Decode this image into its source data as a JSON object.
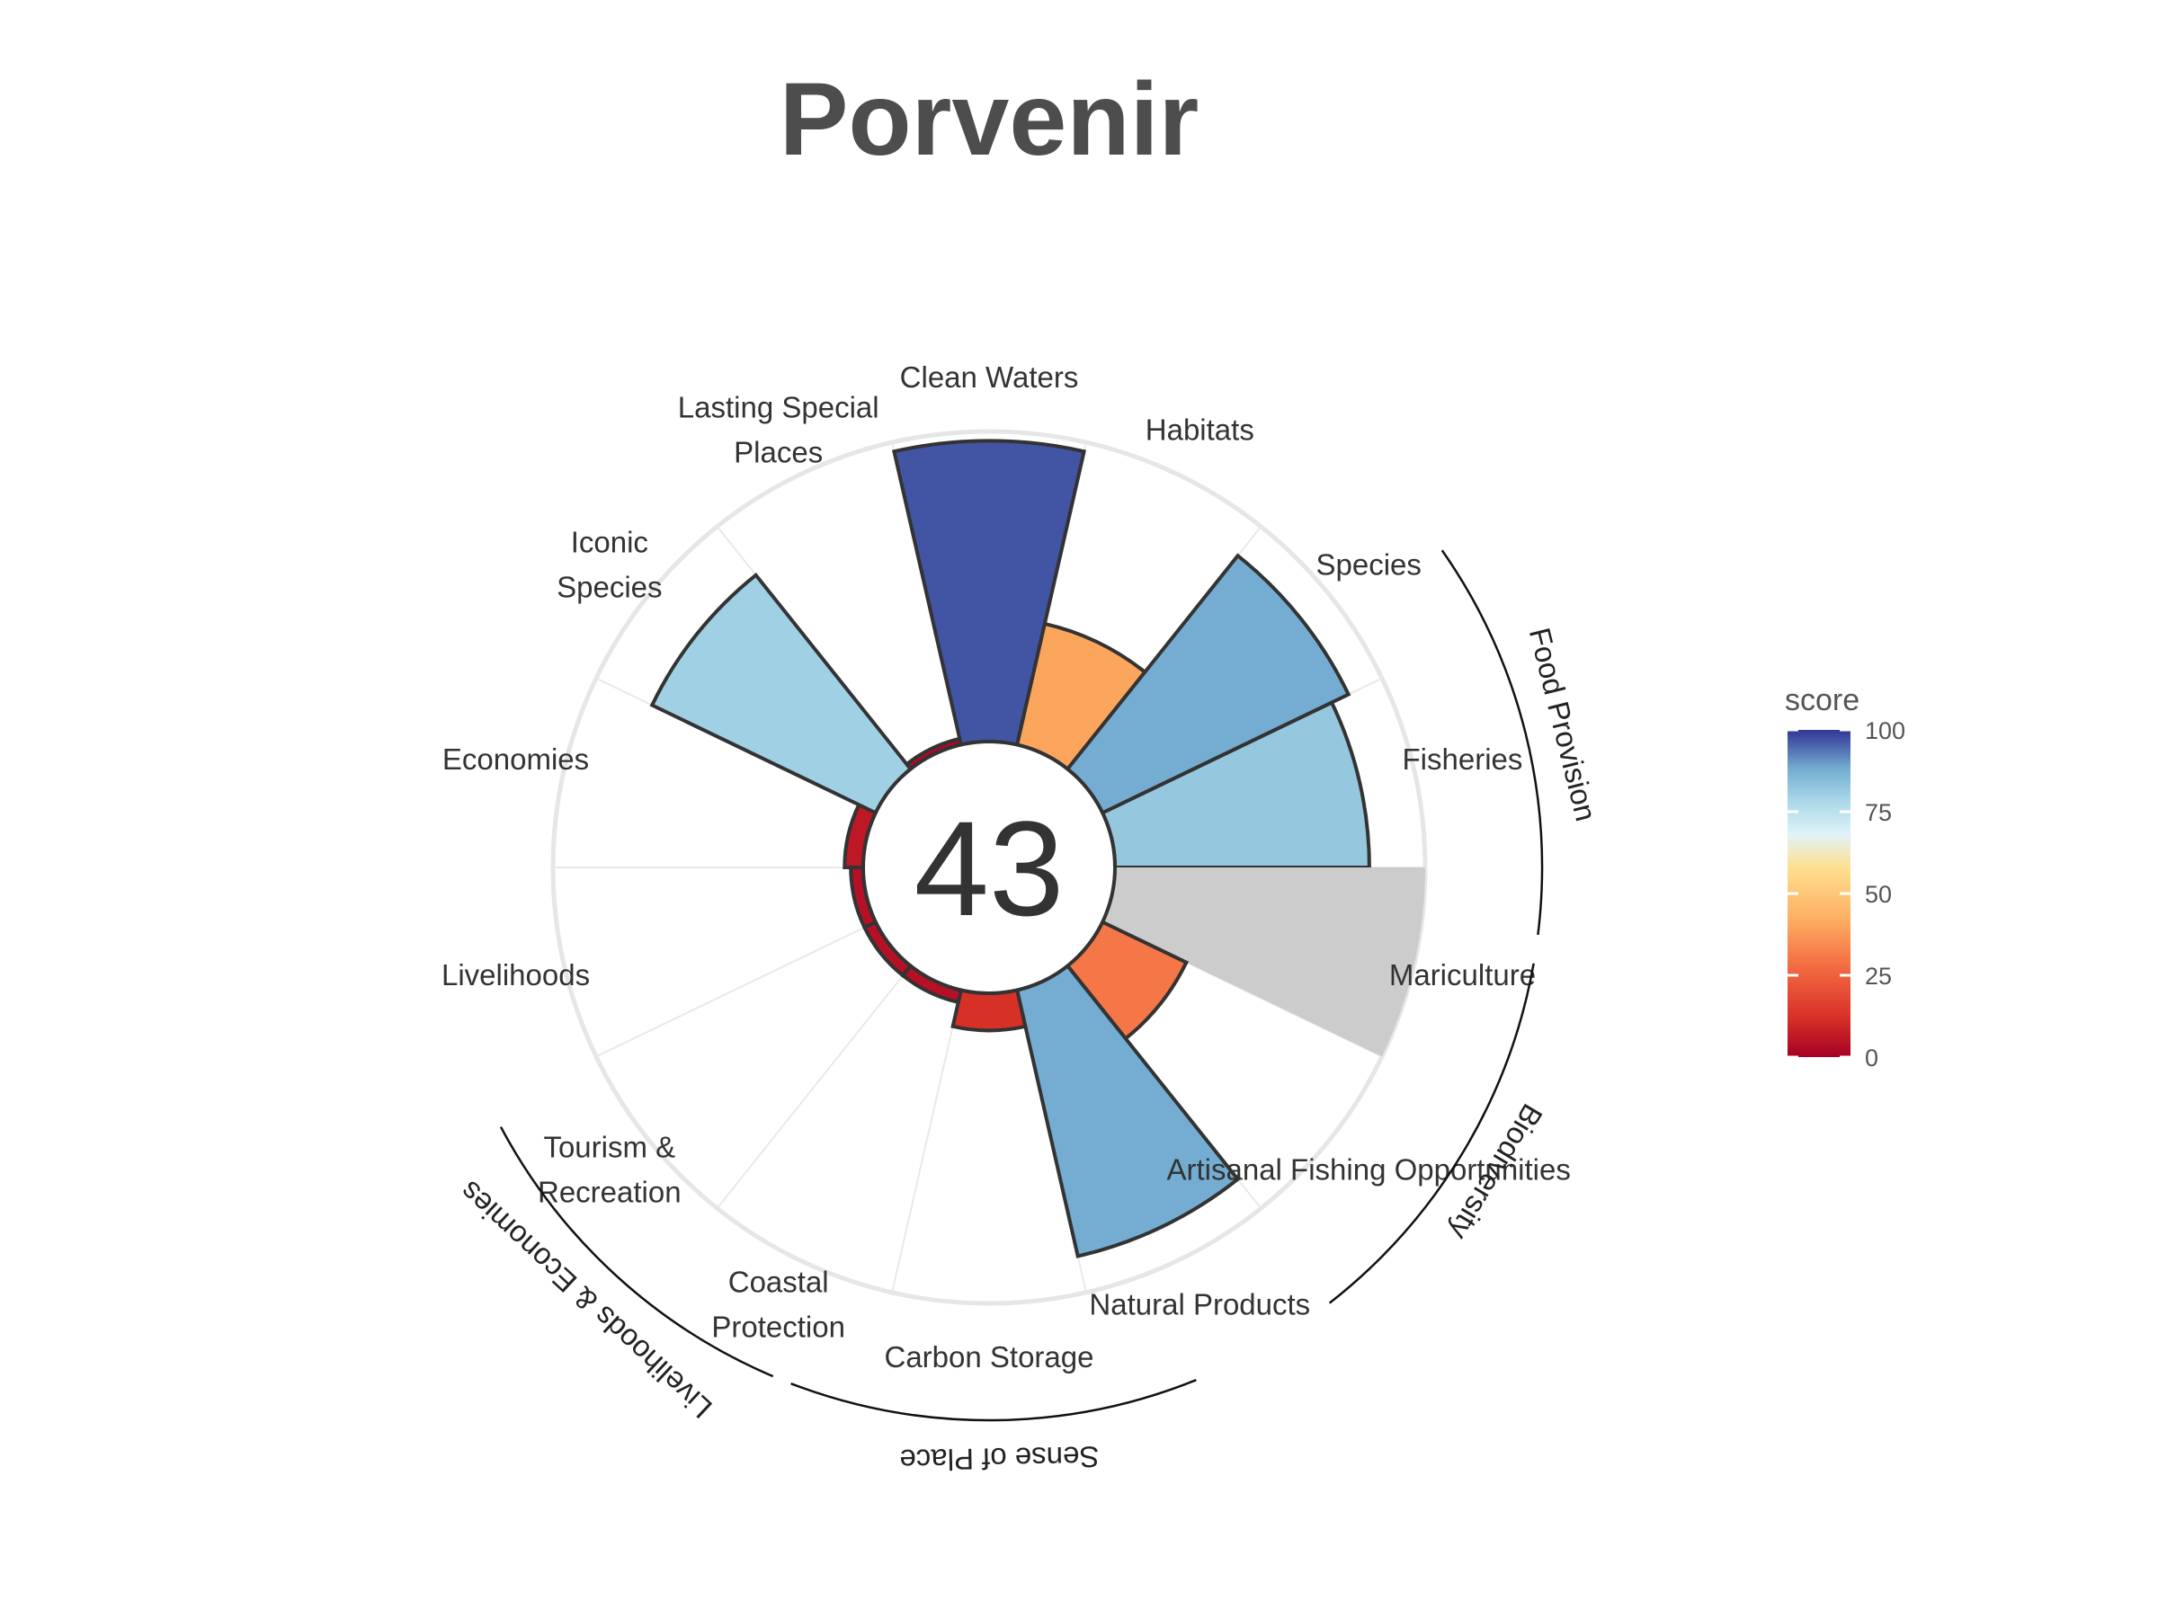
{
  "chart_data": {
    "type": "polar-bar",
    "title": "Porvenir",
    "center_score": "43",
    "goals": [
      {
        "name": "Fisheries",
        "lines": [
          "Fisheries"
        ],
        "score": 82
      },
      {
        "name": "Mariculture",
        "lines": [
          "Mariculture"
        ],
        "score": null
      },
      {
        "name": "Artisanal Fishing Opportunities",
        "lines": [
          "Artisanal Fishing Opportunities"
        ],
        "score": 30
      },
      {
        "name": "Natural Products",
        "lines": [
          "Natural Products"
        ],
        "score": 88
      },
      {
        "name": "Carbon Storage",
        "lines": [
          "Carbon Storage"
        ],
        "score": 12
      },
      {
        "name": "Coastal Protection",
        "lines": [
          "Coastal",
          "Protection"
        ],
        "score": 4
      },
      {
        "name": "Tourism & Recreation",
        "lines": [
          "Tourism &",
          "Recreation"
        ],
        "score": 4
      },
      {
        "name": "Livelihoods",
        "lines": [
          "Livelihoods"
        ],
        "score": 4
      },
      {
        "name": "Economies",
        "lines": [
          "Economies"
        ],
        "score": 6
      },
      {
        "name": "Iconic Species",
        "lines": [
          "Iconic",
          "Species"
        ],
        "score": 80
      },
      {
        "name": "Lasting Special Places",
        "lines": [
          "Lasting Special",
          "Places"
        ],
        "score": 2
      },
      {
        "name": "Clean Waters",
        "lines": [
          "Clean Waters"
        ],
        "score": 97
      },
      {
        "name": "Habitats",
        "lines": [
          "Habitats"
        ],
        "score": 40
      },
      {
        "name": "Species",
        "lines": [
          "Species"
        ],
        "score": 88
      }
    ],
    "groups": [
      {
        "name": "Food Provision"
      },
      {
        "name": "Biodiversity"
      },
      {
        "name": "Sense of Place"
      },
      {
        "name": "Livelihoods & Economies"
      }
    ],
    "legend": {
      "title": "score",
      "ticks": [
        "0",
        "25",
        "50",
        "75",
        "100"
      ]
    },
    "colors": {
      "na_fill": "#cccccc",
      "outline": "#333333",
      "grid": "#e6e6e6"
    },
    "ylim": [
      0,
      100
    ]
  }
}
